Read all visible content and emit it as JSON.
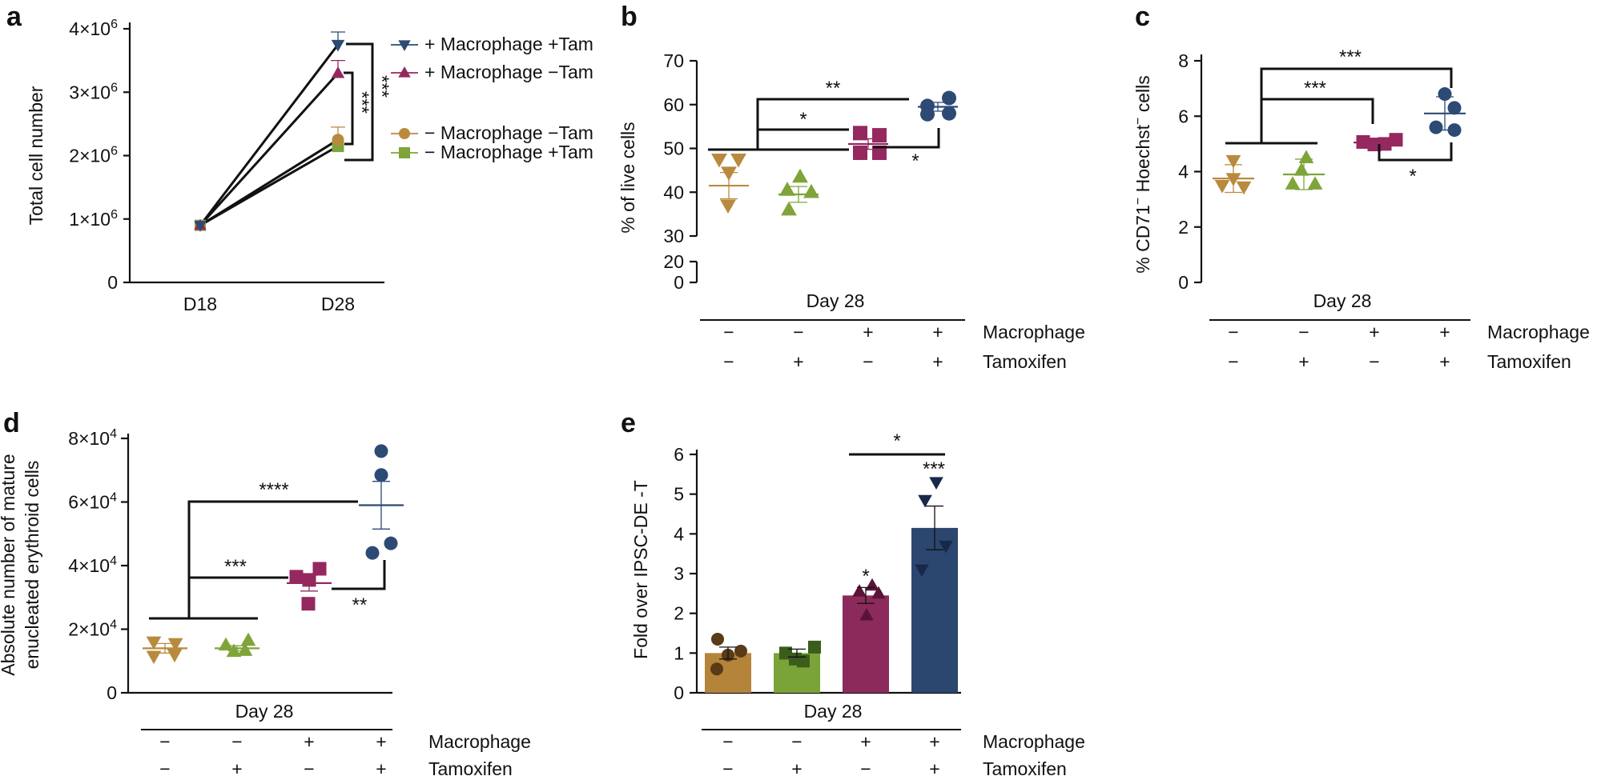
{
  "colors": {
    "mac_tam": "#2d4a75",
    "mac_notam": "#94285f",
    "nomac_notam": "#b98a3e",
    "nomac_tam": "#7fa43a",
    "e_bar1": "#b3843a",
    "e_bar2": "#7aa437",
    "e_bar3": "#8d2a5c",
    "e_bar4": "#2b466f",
    "e_pt1": "#5a3a17",
    "e_pt2": "#3a5d1b",
    "e_pt3": "#5a1438",
    "e_pt4": "#16294a"
  },
  "chart_data": [
    {
      "panel": "a",
      "type": "line",
      "ylabel": "Total cell number",
      "x": [
        "D18",
        "D28"
      ],
      "y_ticks": [
        {
          "v": 0,
          "base": "0",
          "exp": ""
        },
        {
          "v": 1000000,
          "base": "1×10",
          "exp": "6"
        },
        {
          "v": 2000000,
          "base": "2×10",
          "exp": "6"
        },
        {
          "v": 3000000,
          "base": "3×10",
          "exp": "6"
        },
        {
          "v": 4000000,
          "base": "4×10",
          "exp": "6"
        }
      ],
      "ylim": [
        0,
        4000000
      ],
      "series": [
        {
          "name": "+ Macrophage +Tam",
          "color": "#2d4a75",
          "marker": "tri-down",
          "values": [
            900000,
            3750000
          ],
          "err": [
            0,
            200000
          ]
        },
        {
          "name": "+ Macrophage −Tam",
          "color": "#94285f",
          "marker": "tri-up",
          "values": [
            900000,
            3300000
          ],
          "err": [
            0,
            200000
          ]
        },
        {
          "name": "− Macrophage −Tam",
          "color": "#b98a3e",
          "marker": "circle",
          "values": [
            900000,
            2250000
          ],
          "err": [
            0,
            200000
          ]
        },
        {
          "name": "− Macrophage +Tam",
          "color": "#7fa43a",
          "marker": "square",
          "values": [
            900000,
            2150000
          ],
          "err": [
            0,
            0
          ]
        }
      ],
      "significance": [
        "***",
        "***"
      ]
    },
    {
      "panel": "b",
      "type": "scatter",
      "ylabel": "% of live cells",
      "yticks": [
        0,
        20,
        30,
        40,
        50,
        60,
        70
      ],
      "xgroup_label": "Day 28",
      "rows": [
        {
          "label": "Macrophage",
          "signs": [
            "−",
            "−",
            "+",
            "+"
          ]
        },
        {
          "label": "Tamoxifen",
          "signs": [
            "−",
            "+",
            "−",
            "+"
          ]
        }
      ],
      "groups": [
        {
          "marker": "tri-down",
          "color": "#b98a3e",
          "points": [
            47.5,
            44.5,
            37
          ],
          "mean": 41.5,
          "sem": 3
        },
        {
          "marker": "tri-up",
          "color": "#7fa43a",
          "points": [
            43.5,
            40.5,
            40,
            36
          ],
          "mean": 39.5,
          "sem": 1.8
        },
        {
          "marker": "square",
          "color": "#94285f",
          "points": [
            53.5,
            53,
            50,
            49
          ],
          "mean": 51,
          "sem": 1.2
        },
        {
          "marker": "circle",
          "color": "#2d4a75",
          "points": [
            61.5,
            60,
            58.5,
            58
          ],
          "mean": 59.5,
          "sem": 1
        }
      ],
      "significance": [
        "**",
        "*",
        "*"
      ]
    },
    {
      "panel": "c",
      "type": "scatter",
      "ylabel_parts": [
        "% CD71",
        "−",
        " Hoechst",
        "−",
        " cells"
      ],
      "yticks": [
        0,
        2,
        4,
        6,
        8
      ],
      "xgroup_label": "Day 28",
      "rows": [
        {
          "label": "Macrophage",
          "signs": [
            "−",
            "−",
            "+",
            "+"
          ]
        },
        {
          "label": "Tamoxifen",
          "signs": [
            "−",
            "+",
            "−",
            "+"
          ]
        }
      ],
      "groups": [
        {
          "marker": "tri-down",
          "color": "#b98a3e",
          "points": [
            4.4,
            3.8,
            3.4,
            3.4
          ],
          "mean": 3.75,
          "sem": 0.5
        },
        {
          "marker": "tri-up",
          "color": "#7fa43a",
          "points": [
            4.5,
            4.0,
            3.6,
            3.5
          ],
          "mean": 3.9,
          "sem": 0.55
        },
        {
          "marker": "square",
          "color": "#94285f",
          "points": [
            5.1,
            5.05,
            5.0,
            5.15
          ],
          "mean": 5.05,
          "sem": 0.06
        },
        {
          "marker": "circle",
          "color": "#2d4a75",
          "points": [
            6.8,
            6.3,
            5.6,
            5.5
          ],
          "mean": 6.1,
          "sem": 0.6
        }
      ],
      "significance": [
        "***",
        "***",
        "*"
      ]
    },
    {
      "panel": "d",
      "type": "scatter",
      "ylabel_lines": [
        "Absolute number of mature",
        "enucleated erythroid cells"
      ],
      "y_ticks": [
        {
          "v": 0,
          "base": "0",
          "exp": ""
        },
        {
          "v": 20000,
          "base": "2×10",
          "exp": "4"
        },
        {
          "v": 40000,
          "base": "4×10",
          "exp": "4"
        },
        {
          "v": 60000,
          "base": "6×10",
          "exp": "4"
        },
        {
          "v": 80000,
          "base": "8×10",
          "exp": "4"
        }
      ],
      "ylim": [
        0,
        80000
      ],
      "xgroup_label": "Day 28",
      "rows": [
        {
          "label": "Macrophage",
          "signs": [
            "−",
            "−",
            "+",
            "+"
          ]
        },
        {
          "label": "Tamoxifen",
          "signs": [
            "−",
            "+",
            "−",
            "+"
          ]
        }
      ],
      "groups": [
        {
          "marker": "tri-down",
          "color": "#b98a3e",
          "points": [
            16000,
            15500,
            12000,
            11500
          ],
          "mean": 14000,
          "sem": 1500
        },
        {
          "marker": "tri-up",
          "color": "#7fa43a",
          "points": [
            16500,
            15000,
            13500,
            13000
          ],
          "mean": 14000,
          "sem": 800
        },
        {
          "marker": "square",
          "color": "#94285f",
          "points": [
            39000,
            36500,
            35000,
            28000
          ],
          "mean": 34500,
          "sem": 2500
        },
        {
          "marker": "circle",
          "color": "#2d4a75",
          "points": [
            76000,
            68500,
            47000,
            44000
          ],
          "mean": 59000,
          "sem": 7500
        }
      ],
      "significance": [
        "****",
        "***",
        "**"
      ]
    },
    {
      "panel": "e",
      "type": "bar",
      "ylabel": "Fold over IPSC-DE -T",
      "yticks": [
        0,
        1,
        2,
        3,
        4,
        5,
        6
      ],
      "xgroup_label": "Day 28",
      "rows": [
        {
          "label": "Macrophage",
          "signs": [
            "−",
            "−",
            "+",
            "+"
          ]
        },
        {
          "label": "Tamoxifen",
          "signs": [
            "−",
            "+",
            "−",
            "+"
          ]
        }
      ],
      "groups": [
        {
          "marker": "circle",
          "values": [
            1.0
          ],
          "mean": 1.0,
          "sem": 0.15,
          "points": [
            1.35,
            1.05,
            0.95,
            0.6
          ]
        },
        {
          "marker": "square",
          "mean": 1.0,
          "sem": 0.1,
          "points": [
            1.15,
            1.0,
            0.85,
            0.8
          ]
        },
        {
          "marker": "tri-up",
          "mean": 2.45,
          "sem": 0.2,
          "points": [
            2.7,
            2.55,
            2.5,
            1.95
          ]
        },
        {
          "marker": "tri-down",
          "mean": 4.15,
          "sem": 0.55,
          "points": [
            5.3,
            4.85,
            3.7,
            3.1
          ]
        }
      ],
      "significance": [
        "*",
        "*",
        "***"
      ]
    }
  ]
}
